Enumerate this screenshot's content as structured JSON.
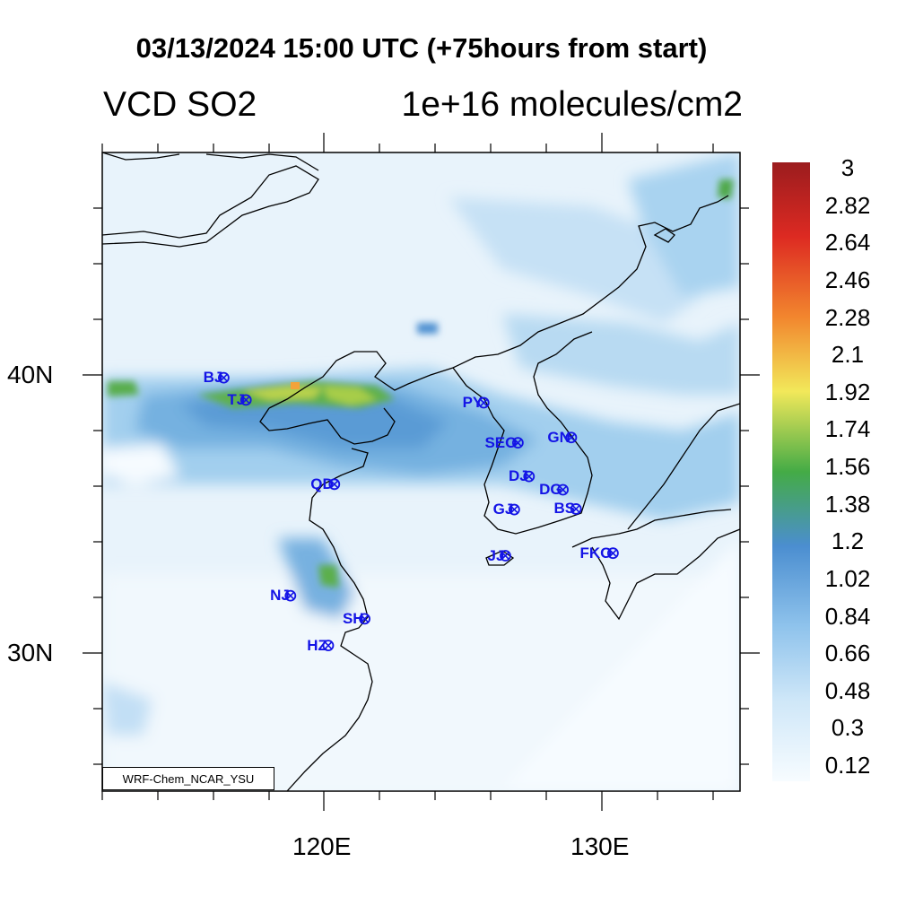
{
  "header": {
    "title": "03/13/2024 15:00 UTC (+75hours from start)",
    "left_label": "VCD SO2",
    "right_label": "1e+16 molecules/cm2"
  },
  "map": {
    "lat_labels": [
      "40N",
      "30N"
    ],
    "lon_labels": [
      "120E",
      "130E"
    ],
    "credit": "WRF-Chem_NCAR_YSU",
    "cities": [
      {
        "code": "BJ",
        "lon": 116.4,
        "lat": 39.9
      },
      {
        "code": "TJ",
        "lon": 117.2,
        "lat": 39.1
      },
      {
        "code": "PY",
        "lon": 125.75,
        "lat": 39.0
      },
      {
        "code": "SEO",
        "lon": 126.98,
        "lat": 37.56
      },
      {
        "code": "GN",
        "lon": 128.9,
        "lat": 37.75
      },
      {
        "code": "QD",
        "lon": 120.38,
        "lat": 36.07
      },
      {
        "code": "DJ",
        "lon": 127.38,
        "lat": 36.35
      },
      {
        "code": "DG",
        "lon": 128.6,
        "lat": 35.87
      },
      {
        "code": "GJ",
        "lon": 126.85,
        "lat": 35.16
      },
      {
        "code": "BS",
        "lon": 129.07,
        "lat": 35.18
      },
      {
        "code": "JJ",
        "lon": 126.53,
        "lat": 33.5
      },
      {
        "code": "FKO",
        "lon": 130.4,
        "lat": 33.59
      },
      {
        "code": "NJ",
        "lon": 118.8,
        "lat": 32.06
      },
      {
        "code": "SH",
        "lon": 121.47,
        "lat": 31.23
      },
      {
        "code": "HZ",
        "lon": 120.16,
        "lat": 30.27
      }
    ]
  },
  "colorbar": {
    "labels": [
      "3",
      "2.82",
      "2.64",
      "2.46",
      "2.28",
      "2.1",
      "1.92",
      "1.74",
      "1.56",
      "1.38",
      "1.2",
      "1.02",
      "0.84",
      "0.66",
      "0.48",
      "0.3",
      "0.12"
    ]
  },
  "colors": {
    "low": "#f4fbff",
    "light_blue": "#a9d4f2",
    "blue": "#4b8ed0",
    "green": "#44ab46",
    "yellow": "#f2e85a",
    "orange": "#f2862e",
    "red": "#dd2a22",
    "dark_red": "#9b1c1e",
    "city_label": "#1414e6"
  }
}
